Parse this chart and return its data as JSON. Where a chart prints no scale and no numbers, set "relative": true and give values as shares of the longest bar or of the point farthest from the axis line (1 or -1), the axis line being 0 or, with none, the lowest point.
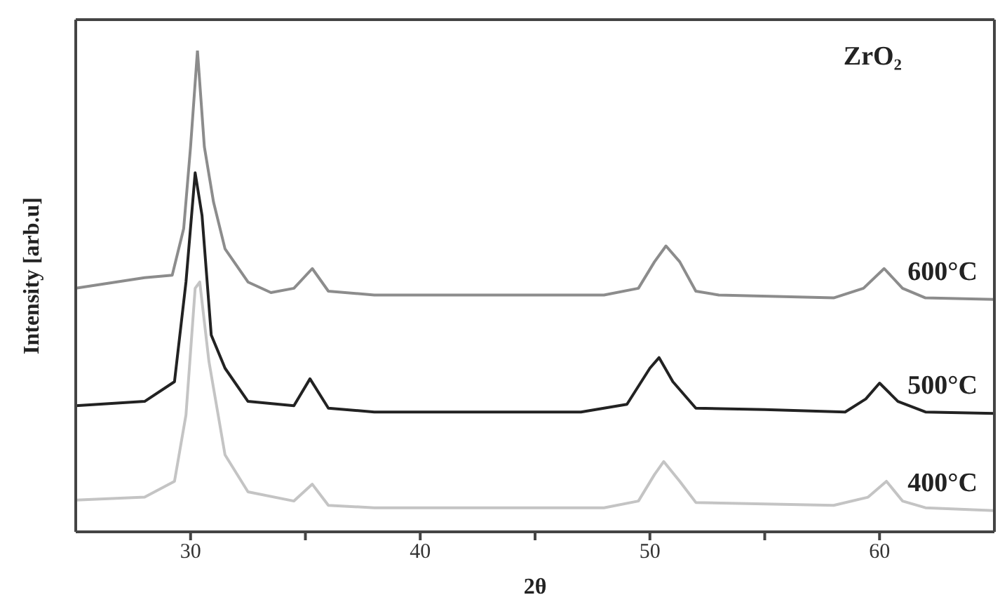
{
  "chart_data": {
    "type": "line",
    "relative": true,
    "xlabel": "2θ",
    "ylabel": "Intensity [arb.u]",
    "annotations": [
      "ZrO₂"
    ],
    "xlim": [
      25,
      65
    ],
    "xticks": [
      30,
      {
        "value": 35,
        "label": null
      },
      40,
      {
        "value": 45,
        "label": null
      },
      50,
      {
        "value": 55,
        "label": null
      },
      60
    ],
    "grid": false,
    "legend": false,
    "marker": "none",
    "line_style": "solid",
    "series": [
      {
        "name": "600°C",
        "color": "#8c8c8c",
        "x": [
          25,
          28,
          29.2,
          29.7,
          30,
          30.3,
          30.6,
          31,
          31.5,
          32.5,
          33.5,
          34.5,
          35.3,
          36,
          38,
          45,
          48,
          49.5,
          50.2,
          50.7,
          51.3,
          52,
          53,
          58,
          59.3,
          60.2,
          61,
          62,
          65
        ],
        "values": [
          0.506,
          0.528,
          0.533,
          0.63,
          0.8,
          1,
          0.8,
          0.685,
          0.588,
          0.519,
          0.497,
          0.506,
          0.547,
          0.5,
          0.492,
          0.492,
          0.492,
          0.506,
          0.561,
          0.594,
          0.561,
          0.5,
          0.492,
          0.486,
          0.506,
          0.547,
          0.506,
          0.486,
          0.483
        ]
      },
      {
        "name": "500°C",
        "color": "#222222",
        "x": [
          25,
          28,
          29.3,
          29.8,
          30.2,
          30.5,
          30.9,
          31.5,
          32.5,
          34.5,
          35.2,
          36,
          38,
          47,
          49,
          50,
          50.4,
          51,
          52,
          55,
          58.5,
          59.4,
          60,
          60.8,
          62,
          65
        ],
        "values": [
          0.262,
          0.271,
          0.312,
          0.519,
          0.746,
          0.657,
          0.409,
          0.34,
          0.271,
          0.262,
          0.318,
          0.257,
          0.249,
          0.249,
          0.265,
          0.34,
          0.362,
          0.312,
          0.257,
          0.254,
          0.249,
          0.276,
          0.309,
          0.271,
          0.249,
          0.246
        ]
      },
      {
        "name": "400°C",
        "color": "#c4c4c4",
        "x": [
          25,
          28,
          29.3,
          29.8,
          30.2,
          30.4,
          30.8,
          31.5,
          32.5,
          34.5,
          35.3,
          36,
          38,
          48,
          49.5,
          50.2,
          50.6,
          51.3,
          52,
          58,
          59.5,
          60.3,
          61,
          62,
          65
        ],
        "values": [
          0.066,
          0.072,
          0.105,
          0.243,
          0.506,
          0.519,
          0.354,
          0.16,
          0.083,
          0.064,
          0.099,
          0.055,
          0.05,
          0.05,
          0.064,
          0.119,
          0.146,
          0.105,
          0.061,
          0.055,
          0.072,
          0.105,
          0.064,
          0.05,
          0.044
        ]
      }
    ]
  }
}
